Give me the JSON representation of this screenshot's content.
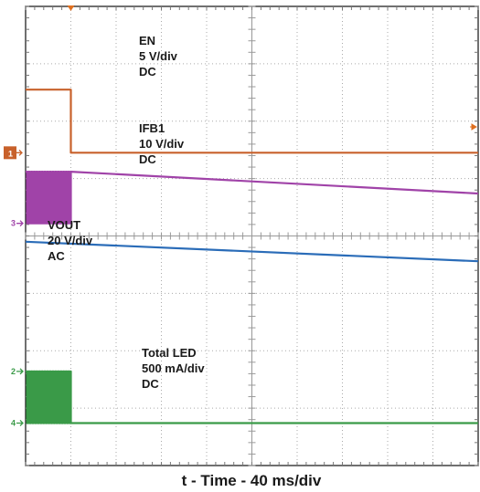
{
  "chart_data": {
    "type": "line",
    "title": "",
    "xlabel": "t - Time - 40 ms/div",
    "ylabel": "",
    "grid": true,
    "divisions": {
      "x": 10,
      "y": 8
    },
    "trigger_position_div": 1.0,
    "series": [
      {
        "name": "EN",
        "channel": "1",
        "scale": "5 V/div",
        "coupling": "DC",
        "color": "#c8612b",
        "pattern": "step-down",
        "points": [
          [
            0,
            6.55
          ],
          [
            1.0,
            6.55
          ],
          [
            1.0,
            5.45
          ],
          [
            10,
            5.45
          ]
        ]
      },
      {
        "name": "IFB1",
        "channel": "3",
        "scale": "10 V/div",
        "coupling": "DC",
        "color": "#a043a8",
        "pattern": "burst-then-decay",
        "burst": {
          "start": 0,
          "end": 1.0,
          "high": 5.12,
          "low": 4.22,
          "pulses": 17
        },
        "points": [
          [
            1.0,
            5.12
          ],
          [
            10,
            4.74
          ]
        ]
      },
      {
        "name": "VOUT",
        "scale": "20 V/div",
        "coupling": "AC",
        "color": "#2a6cb8",
        "pattern": "linear-decay",
        "points": [
          [
            0,
            3.9
          ],
          [
            10,
            3.56
          ]
        ]
      },
      {
        "name": "Total LED",
        "channel": "4",
        "scale": "500 mA/div",
        "coupling": "DC",
        "color": "#3a9a48",
        "pattern": "burst-then-off",
        "burst": {
          "start": 0,
          "end": 1.0,
          "high": 1.64,
          "low": 0.74,
          "pulses": 17
        },
        "points": [
          [
            1.0,
            0.74
          ],
          [
            10,
            0.74
          ]
        ]
      }
    ],
    "annotations": [
      {
        "lines": [
          "EN",
          "5 V/div",
          "DC"
        ],
        "series": 0
      },
      {
        "lines": [
          "IFB1",
          "10 V/div",
          "DC"
        ],
        "series": 1
      },
      {
        "lines": [
          "VOUT",
          "20 V/div",
          "AC"
        ],
        "series": 2
      },
      {
        "lines": [
          "Total LED",
          "500 mA/div",
          "DC"
        ],
        "series": 3
      }
    ],
    "channel_markers": [
      {
        "label": "1",
        "y": 5.45,
        "color": "#c8612b",
        "filled": true
      },
      {
        "label": "3",
        "y": 4.22,
        "color": "#a043a8",
        "filled": false
      },
      {
        "label": "2",
        "y": 1.64,
        "color": "#3a9a48",
        "filled": false
      },
      {
        "label": "4",
        "y": 0.74,
        "color": "#3a9a48",
        "filled": false
      }
    ]
  }
}
